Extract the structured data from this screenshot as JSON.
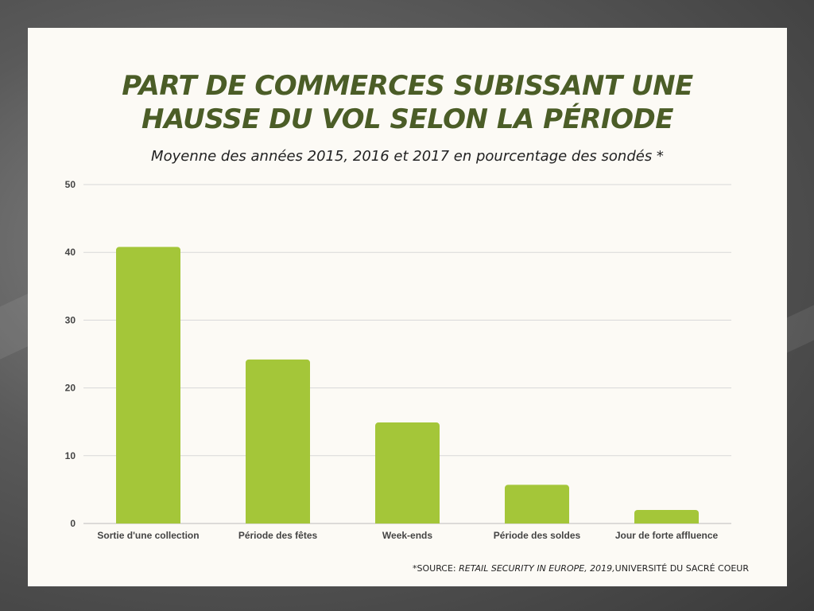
{
  "title_line1": "PART DE COMMERCES SUBISSANT UNE",
  "title_line2": "HAUSSE DU VOL SELON LA PÉRIODE",
  "subtitle": "Moyenne des années 2015, 2016 et 2017 en pourcentage des sondés *",
  "footnote": {
    "prefix": "*SOURCE: ",
    "source_title": "RETAIL SECURITY IN EUROPE, 2019,",
    "suffix": "UNIVERSITÉ DU SACRÉ COEUR"
  },
  "colors": {
    "bar": "#a4c639",
    "title": "#4b5d27",
    "grid": "#d8d8d8"
  },
  "chart_data": {
    "type": "bar",
    "title": "PART DE COMMERCES SUBISSANT UNE HAUSSE DU VOL SELON LA PÉRIODE",
    "subtitle": "Moyenne des années 2015, 2016 et 2017 en pourcentage des sondés *",
    "categories": [
      "Sortie d'une collection",
      "Période des fêtes",
      "Week-ends",
      "Période des soldes",
      "Jour de forte affluence"
    ],
    "values": [
      40.8,
      24.2,
      14.9,
      5.7,
      2.0
    ],
    "xlabel": "",
    "ylabel": "",
    "ylim": [
      0,
      50
    ],
    "yticks": [
      0,
      10,
      20,
      30,
      40,
      50
    ],
    "grid": true
  }
}
